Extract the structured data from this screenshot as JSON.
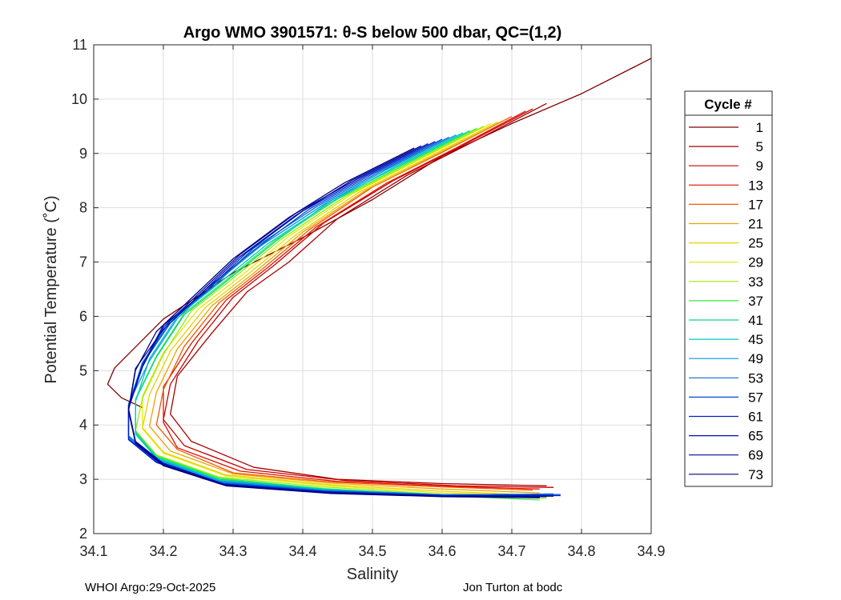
{
  "chart_data": {
    "type": "line",
    "title": "Argo WMO 3901571: θ-S below 500 dbar,  QC=(1,2)",
    "xlabel": "Salinity",
    "ylabel": "Potential Temperature (˚C)",
    "xlim": [
      34.1,
      34.9
    ],
    "ylim": [
      2,
      11
    ],
    "xticks": [
      "34.1",
      "34.2",
      "34.3",
      "34.4",
      "34.5",
      "34.6",
      "34.7",
      "34.8",
      "34.9"
    ],
    "yticks": [
      "2",
      "3",
      "4",
      "5",
      "6",
      "7",
      "8",
      "9",
      "10",
      "11"
    ],
    "grid": true,
    "legend_title": "Cycle #",
    "legend_position": "right",
    "series": [
      {
        "name": "1",
        "color": "#800000",
        "points": [
          [
            34.9,
            10.75
          ],
          [
            34.8,
            10.1
          ],
          [
            34.7,
            9.55
          ],
          [
            34.6,
            8.95
          ],
          [
            34.5,
            8.15
          ],
          [
            34.4,
            7.45
          ],
          [
            34.3,
            6.8
          ],
          [
            34.2,
            5.95
          ],
          [
            34.13,
            5.05
          ],
          [
            34.12,
            4.75
          ],
          [
            34.14,
            4.5
          ],
          [
            34.17,
            4.32
          ]
        ]
      },
      {
        "name": "5",
        "color": "#a50000",
        "points": [
          [
            34.75,
            9.92
          ],
          [
            34.65,
            9.25
          ],
          [
            34.55,
            8.6
          ],
          [
            34.45,
            7.8
          ],
          [
            34.38,
            7.0
          ],
          [
            34.32,
            6.45
          ],
          [
            34.27,
            5.7
          ],
          [
            34.22,
            4.9
          ],
          [
            34.21,
            4.2
          ],
          [
            34.24,
            3.7
          ],
          [
            34.33,
            3.22
          ],
          [
            34.45,
            3.0
          ],
          [
            34.6,
            2.92
          ],
          [
            34.75,
            2.88
          ]
        ]
      },
      {
        "name": "9",
        "color": "#c80000",
        "points": [
          [
            34.73,
            9.82
          ],
          [
            34.63,
            9.15
          ],
          [
            34.53,
            8.5
          ],
          [
            34.43,
            7.72
          ],
          [
            34.36,
            6.95
          ],
          [
            34.3,
            6.35
          ],
          [
            34.25,
            5.55
          ],
          [
            34.21,
            4.75
          ],
          [
            34.2,
            4.1
          ],
          [
            34.23,
            3.62
          ],
          [
            34.32,
            3.18
          ],
          [
            34.46,
            2.98
          ],
          [
            34.62,
            2.88
          ],
          [
            34.76,
            2.85
          ]
        ]
      },
      {
        "name": "13",
        "color": "#e01000",
        "points": [
          [
            34.72,
            9.78
          ],
          [
            34.62,
            9.1
          ],
          [
            34.52,
            8.45
          ],
          [
            34.42,
            7.65
          ],
          [
            34.35,
            6.9
          ],
          [
            34.29,
            6.3
          ],
          [
            34.24,
            5.5
          ],
          [
            34.2,
            4.7
          ],
          [
            34.2,
            4.05
          ],
          [
            34.22,
            3.58
          ],
          [
            34.31,
            3.15
          ],
          [
            34.45,
            2.96
          ],
          [
            34.6,
            2.87
          ],
          [
            34.74,
            2.82
          ]
        ]
      },
      {
        "name": "17",
        "color": "#f05a00",
        "points": [
          [
            34.7,
            9.68
          ],
          [
            34.6,
            9.02
          ],
          [
            34.5,
            8.38
          ],
          [
            34.41,
            7.6
          ],
          [
            34.34,
            6.85
          ],
          [
            34.28,
            6.25
          ],
          [
            34.23,
            5.45
          ],
          [
            34.2,
            4.65
          ],
          [
            34.19,
            4.0
          ],
          [
            34.22,
            3.55
          ],
          [
            34.3,
            3.12
          ],
          [
            34.44,
            2.95
          ],
          [
            34.6,
            2.86
          ],
          [
            34.73,
            2.8
          ]
        ]
      },
      {
        "name": "21",
        "color": "#f0a000",
        "points": [
          [
            34.69,
            9.62
          ],
          [
            34.59,
            8.97
          ],
          [
            34.49,
            8.32
          ],
          [
            34.4,
            7.55
          ],
          [
            34.33,
            6.8
          ],
          [
            34.27,
            6.2
          ],
          [
            34.22,
            5.4
          ],
          [
            34.19,
            4.6
          ],
          [
            34.18,
            3.98
          ],
          [
            34.21,
            3.52
          ],
          [
            34.3,
            3.1
          ],
          [
            34.44,
            2.93
          ],
          [
            34.6,
            2.82
          ],
          [
            34.74,
            2.75
          ]
        ]
      },
      {
        "name": "25",
        "color": "#e6d000",
        "points": [
          [
            34.68,
            9.58
          ],
          [
            34.58,
            8.93
          ],
          [
            34.48,
            8.28
          ],
          [
            34.39,
            7.5
          ],
          [
            34.32,
            6.76
          ],
          [
            34.26,
            6.16
          ],
          [
            34.21,
            5.36
          ],
          [
            34.18,
            4.56
          ],
          [
            34.17,
            3.95
          ],
          [
            34.2,
            3.5
          ],
          [
            34.29,
            3.08
          ],
          [
            34.44,
            2.9
          ],
          [
            34.6,
            2.78
          ],
          [
            34.75,
            2.7
          ]
        ]
      },
      {
        "name": "29",
        "color": "#e8e800",
        "points": [
          [
            34.67,
            9.55
          ],
          [
            34.57,
            8.9
          ],
          [
            34.47,
            8.25
          ],
          [
            34.38,
            7.47
          ],
          [
            34.31,
            6.73
          ],
          [
            34.25,
            6.13
          ],
          [
            34.2,
            5.33
          ],
          [
            34.17,
            4.53
          ],
          [
            34.17,
            3.93
          ],
          [
            34.2,
            3.48
          ],
          [
            34.29,
            3.06
          ],
          [
            34.44,
            2.88
          ],
          [
            34.6,
            2.75
          ],
          [
            34.76,
            2.68
          ]
        ]
      },
      {
        "name": "33",
        "color": "#9aee00",
        "points": [
          [
            34.66,
            9.5
          ],
          [
            34.56,
            8.86
          ],
          [
            34.46,
            8.2
          ],
          [
            34.37,
            7.43
          ],
          [
            34.3,
            6.7
          ],
          [
            34.24,
            6.1
          ],
          [
            34.2,
            5.3
          ],
          [
            34.17,
            4.5
          ],
          [
            34.16,
            3.9
          ],
          [
            34.19,
            3.45
          ],
          [
            34.28,
            3.04
          ],
          [
            34.43,
            2.86
          ],
          [
            34.6,
            2.72
          ],
          [
            34.75,
            2.65
          ]
        ]
      },
      {
        "name": "37",
        "color": "#40e840",
        "points": [
          [
            34.65,
            9.46
          ],
          [
            34.55,
            8.82
          ],
          [
            34.45,
            8.16
          ],
          [
            34.36,
            7.4
          ],
          [
            34.29,
            6.67
          ],
          [
            34.23,
            6.06
          ],
          [
            34.19,
            5.27
          ],
          [
            34.16,
            4.48
          ],
          [
            34.16,
            3.88
          ],
          [
            34.19,
            3.43
          ],
          [
            34.28,
            3.02
          ],
          [
            34.43,
            2.83
          ],
          [
            34.6,
            2.7
          ],
          [
            34.74,
            2.62
          ]
        ]
      },
      {
        "name": "41",
        "color": "#00d890",
        "points": [
          [
            34.64,
            9.42
          ],
          [
            34.54,
            8.78
          ],
          [
            34.44,
            8.13
          ],
          [
            34.36,
            7.37
          ],
          [
            34.29,
            6.64
          ],
          [
            34.23,
            6.03
          ],
          [
            34.19,
            5.25
          ],
          [
            34.16,
            4.46
          ],
          [
            34.16,
            3.86
          ],
          [
            34.19,
            3.41
          ],
          [
            34.28,
            3.0
          ],
          [
            34.43,
            2.82
          ],
          [
            34.6,
            2.7
          ],
          [
            34.74,
            2.66
          ]
        ]
      },
      {
        "name": "45",
        "color": "#00c8c8",
        "points": [
          [
            34.63,
            9.38
          ],
          [
            34.53,
            8.74
          ],
          [
            34.44,
            8.1
          ],
          [
            34.35,
            7.34
          ],
          [
            34.28,
            6.61
          ],
          [
            34.22,
            6.0
          ],
          [
            34.18,
            5.22
          ],
          [
            34.16,
            4.43
          ],
          [
            34.16,
            3.83
          ],
          [
            34.19,
            3.39
          ],
          [
            34.28,
            2.98
          ],
          [
            34.43,
            2.81
          ],
          [
            34.6,
            2.72
          ],
          [
            34.75,
            2.7
          ]
        ]
      },
      {
        "name": "49",
        "color": "#0098e0",
        "points": [
          [
            34.62,
            9.34
          ],
          [
            34.52,
            8.7
          ],
          [
            34.43,
            8.06
          ],
          [
            34.34,
            7.3
          ],
          [
            34.27,
            6.57
          ],
          [
            34.22,
            5.96
          ],
          [
            34.18,
            5.18
          ],
          [
            34.15,
            4.4
          ],
          [
            34.15,
            3.8
          ],
          [
            34.19,
            3.37
          ],
          [
            34.28,
            2.97
          ],
          [
            34.43,
            2.8
          ],
          [
            34.6,
            2.72
          ],
          [
            34.76,
            2.72
          ]
        ]
      },
      {
        "name": "53",
        "color": "#0070d0",
        "points": [
          [
            34.61,
            9.3
          ],
          [
            34.51,
            8.66
          ],
          [
            34.42,
            8.02
          ],
          [
            34.33,
            7.26
          ],
          [
            34.27,
            6.53
          ],
          [
            34.21,
            5.92
          ],
          [
            34.17,
            5.15
          ],
          [
            34.15,
            4.37
          ],
          [
            34.15,
            3.78
          ],
          [
            34.19,
            3.35
          ],
          [
            34.28,
            2.95
          ],
          [
            34.43,
            2.79
          ],
          [
            34.6,
            2.71
          ],
          [
            34.76,
            2.73
          ]
        ]
      },
      {
        "name": "57",
        "color": "#0048d8",
        "points": [
          [
            34.6,
            9.26
          ],
          [
            34.5,
            8.62
          ],
          [
            34.41,
            7.98
          ],
          [
            34.33,
            7.22
          ],
          [
            34.26,
            6.49
          ],
          [
            34.21,
            5.88
          ],
          [
            34.17,
            5.12
          ],
          [
            34.15,
            4.35
          ],
          [
            34.15,
            3.75
          ],
          [
            34.19,
            3.33
          ],
          [
            34.28,
            2.93
          ],
          [
            34.43,
            2.78
          ],
          [
            34.6,
            2.7
          ],
          [
            34.77,
            2.72
          ]
        ]
      },
      {
        "name": "61",
        "color": "#0020c8",
        "points": [
          [
            34.59,
            9.22
          ],
          [
            34.49,
            8.58
          ],
          [
            34.4,
            7.94
          ],
          [
            34.32,
            7.18
          ],
          [
            34.26,
            6.45
          ],
          [
            34.2,
            5.84
          ],
          [
            34.17,
            5.1
          ],
          [
            34.15,
            4.33
          ],
          [
            34.15,
            3.73
          ],
          [
            34.19,
            3.31
          ],
          [
            34.28,
            2.92
          ],
          [
            34.43,
            2.77
          ],
          [
            34.6,
            2.7
          ],
          [
            34.77,
            2.7
          ]
        ]
      },
      {
        "name": "65",
        "color": "#0010b0",
        "points": [
          [
            34.58,
            9.18
          ],
          [
            34.48,
            8.54
          ],
          [
            34.39,
            7.9
          ],
          [
            34.31,
            7.14
          ],
          [
            34.25,
            6.41
          ],
          [
            34.2,
            5.8
          ],
          [
            34.17,
            5.07
          ],
          [
            34.15,
            4.3
          ],
          [
            34.16,
            3.7
          ],
          [
            34.2,
            3.29
          ],
          [
            34.29,
            2.9
          ],
          [
            34.44,
            2.76
          ],
          [
            34.6,
            2.7
          ],
          [
            34.76,
            2.69
          ]
        ]
      },
      {
        "name": "69",
        "color": "#000898",
        "points": [
          [
            34.57,
            9.14
          ],
          [
            34.47,
            8.5
          ],
          [
            34.39,
            7.86
          ],
          [
            34.31,
            7.1
          ],
          [
            34.25,
            6.37
          ],
          [
            34.2,
            5.76
          ],
          [
            34.16,
            5.04
          ],
          [
            34.15,
            4.28
          ],
          [
            34.16,
            3.68
          ],
          [
            34.2,
            3.27
          ],
          [
            34.29,
            2.89
          ],
          [
            34.44,
            2.75
          ],
          [
            34.6,
            2.69
          ],
          [
            34.75,
            2.68
          ]
        ]
      },
      {
        "name": "73",
        "color": "#000080",
        "points": [
          [
            34.56,
            9.1
          ],
          [
            34.46,
            8.46
          ],
          [
            34.38,
            7.82
          ],
          [
            34.3,
            7.06
          ],
          [
            34.24,
            6.33
          ],
          [
            34.19,
            5.72
          ],
          [
            34.16,
            5.01
          ],
          [
            34.15,
            4.26
          ],
          [
            34.16,
            3.66
          ],
          [
            34.2,
            3.25
          ],
          [
            34.29,
            2.88
          ],
          [
            34.44,
            2.74
          ],
          [
            34.6,
            2.68
          ],
          [
            34.74,
            2.66
          ]
        ]
      }
    ]
  },
  "footer": {
    "left": "WHOI Argo:29-Oct-2025",
    "right": "Jon Turton at bodc"
  }
}
